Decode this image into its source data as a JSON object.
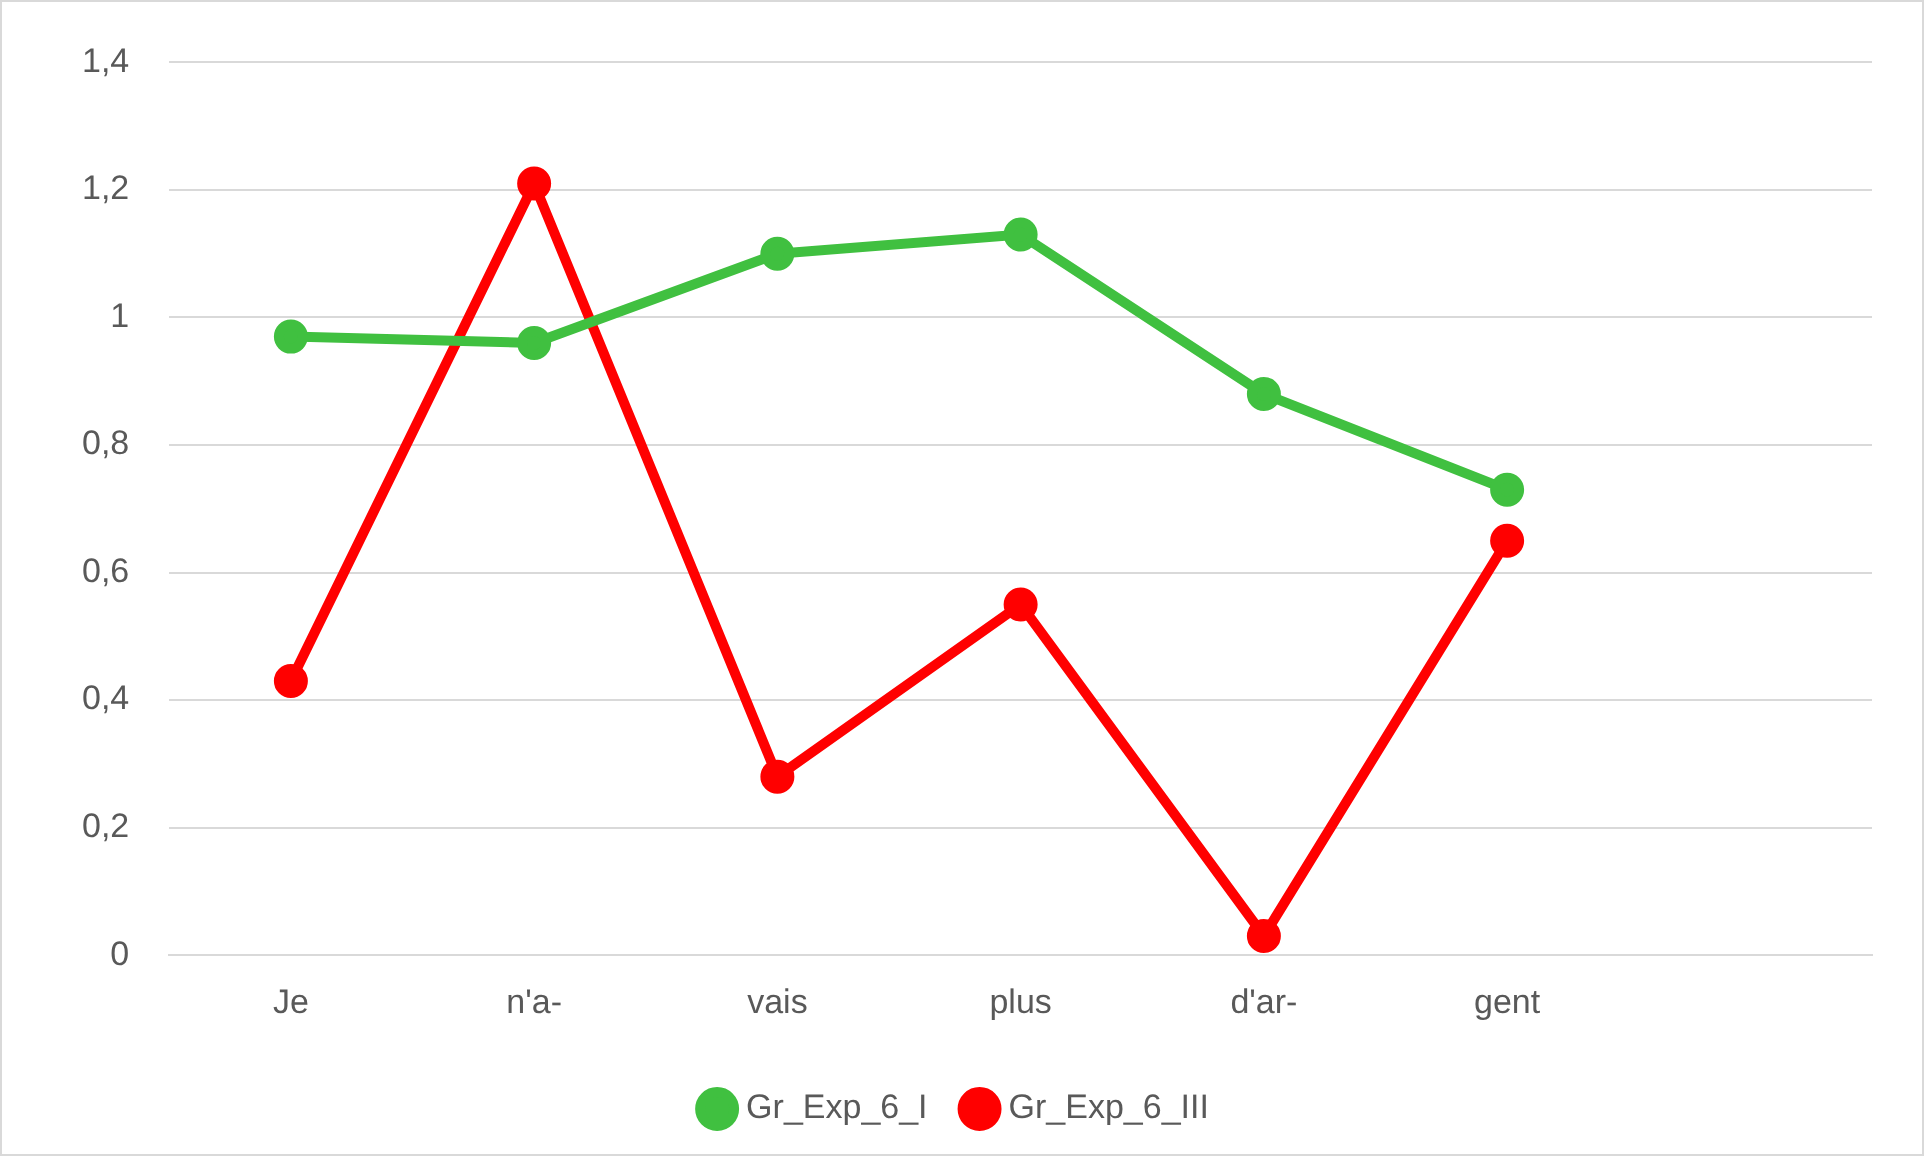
{
  "chart_data": {
    "type": "line",
    "categories": [
      "Je",
      "n'a-",
      "vais",
      "plus",
      "d'ar-",
      "gent",
      null
    ],
    "series": [
      {
        "name": "Gr_Exp_6_I",
        "color": "#40c040",
        "values": [
          0.97,
          0.96,
          1.1,
          1.13,
          0.88,
          0.73,
          null
        ]
      },
      {
        "name": "Gr_Exp_6_III",
        "color": "#ff0000",
        "values": [
          0.43,
          1.21,
          0.28,
          0.55,
          0.03,
          0.65,
          null
        ]
      }
    ],
    "ylim": [
      0,
      1.4
    ],
    "yticks": [
      0,
      {
        "value": 0.2,
        "label": "0,2"
      },
      {
        "value": 0.4,
        "label": "0,4"
      },
      {
        "value": 0.6,
        "label": "0,6"
      },
      {
        "value": 0.8,
        "label": "0,8"
      },
      1,
      {
        "value": 1.2,
        "label": "1,2"
      },
      {
        "value": 1.4,
        "label": "1,4"
      }
    ],
    "grid": "y",
    "legend": "bottom",
    "marker": "circle",
    "line_style": "solid"
  }
}
